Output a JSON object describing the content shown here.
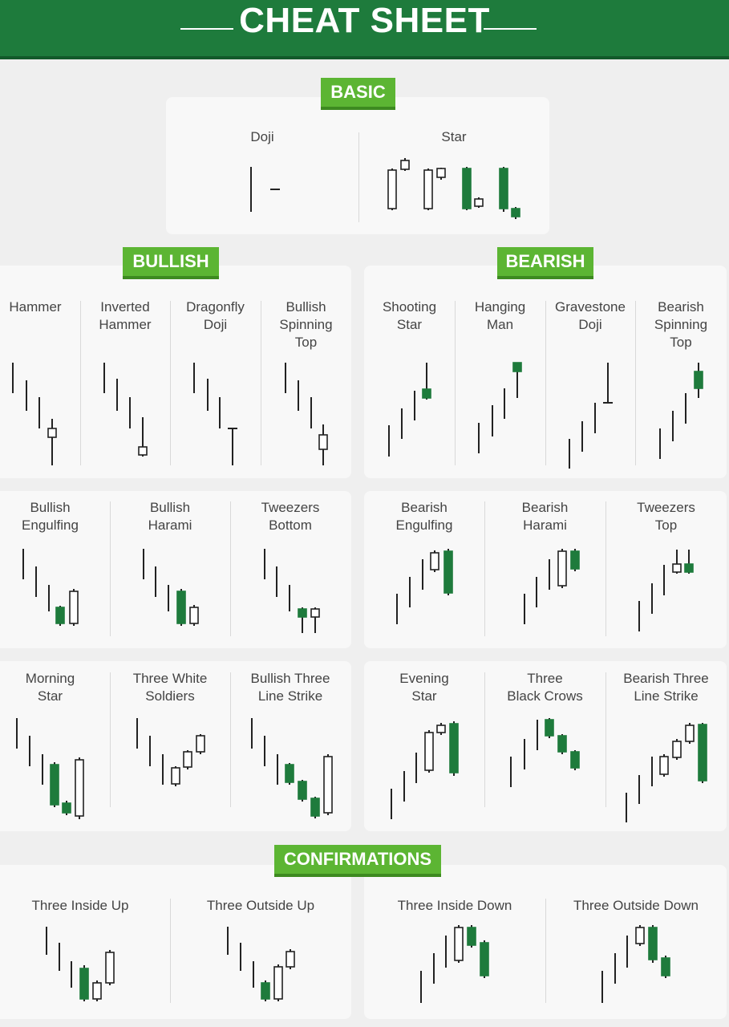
{
  "header": {
    "title": "CHEAT SHEET"
  },
  "sections": {
    "basic": "BASIC",
    "bullish": "BULLISH",
    "bearish": "BEARISH",
    "confirmations": "CONFIRMATIONS"
  },
  "colors": {
    "header": "#1e7b3c",
    "badge": "#5cb533",
    "bearish_candle": "#1e7b3c",
    "bullish_candle": "#ffffff",
    "outline": "#222222"
  },
  "patterns": {
    "doji": "Doji",
    "star": "Star",
    "hammer": "Hammer",
    "inverted_hammer": "Inverted\nHammer",
    "dragonfly_doji": "Dragonfly\nDoji",
    "bullish_spinning_top": "Bullish\nSpinning\nTop",
    "shooting_star": "Shooting\nStar",
    "hanging_man": "Hanging\nMan",
    "gravestone_doji": "Gravestone\nDoji",
    "bearish_spinning_top": "Bearish\nSpinning\nTop",
    "bullish_engulfing": "Bullish\nEngulfing",
    "bullish_harami": "Bullish\nHarami",
    "tweezers_bottom": "Tweezers\nBottom",
    "bearish_engulfing": "Bearish\nEngulfing",
    "bearish_harami": "Bearish\nHarami",
    "tweezers_top": "Tweezers\nTop",
    "morning_star": "Morning\nStar",
    "three_white_soldiers": "Three White\nSoldiers",
    "bullish_three_line_strike": "Bullish Three\nLine Strike",
    "evening_star": "Evening\nStar",
    "three_black_crows": "Three\nBlack Crows",
    "bearish_three_line_strike": "Bearish Three\nLine Strike",
    "three_inside_up": "Three Inside Up",
    "three_outside_up": "Three Outside Up",
    "three_inside_down": "Three Inside Down",
    "three_outside_down": "Three Outside Down"
  }
}
